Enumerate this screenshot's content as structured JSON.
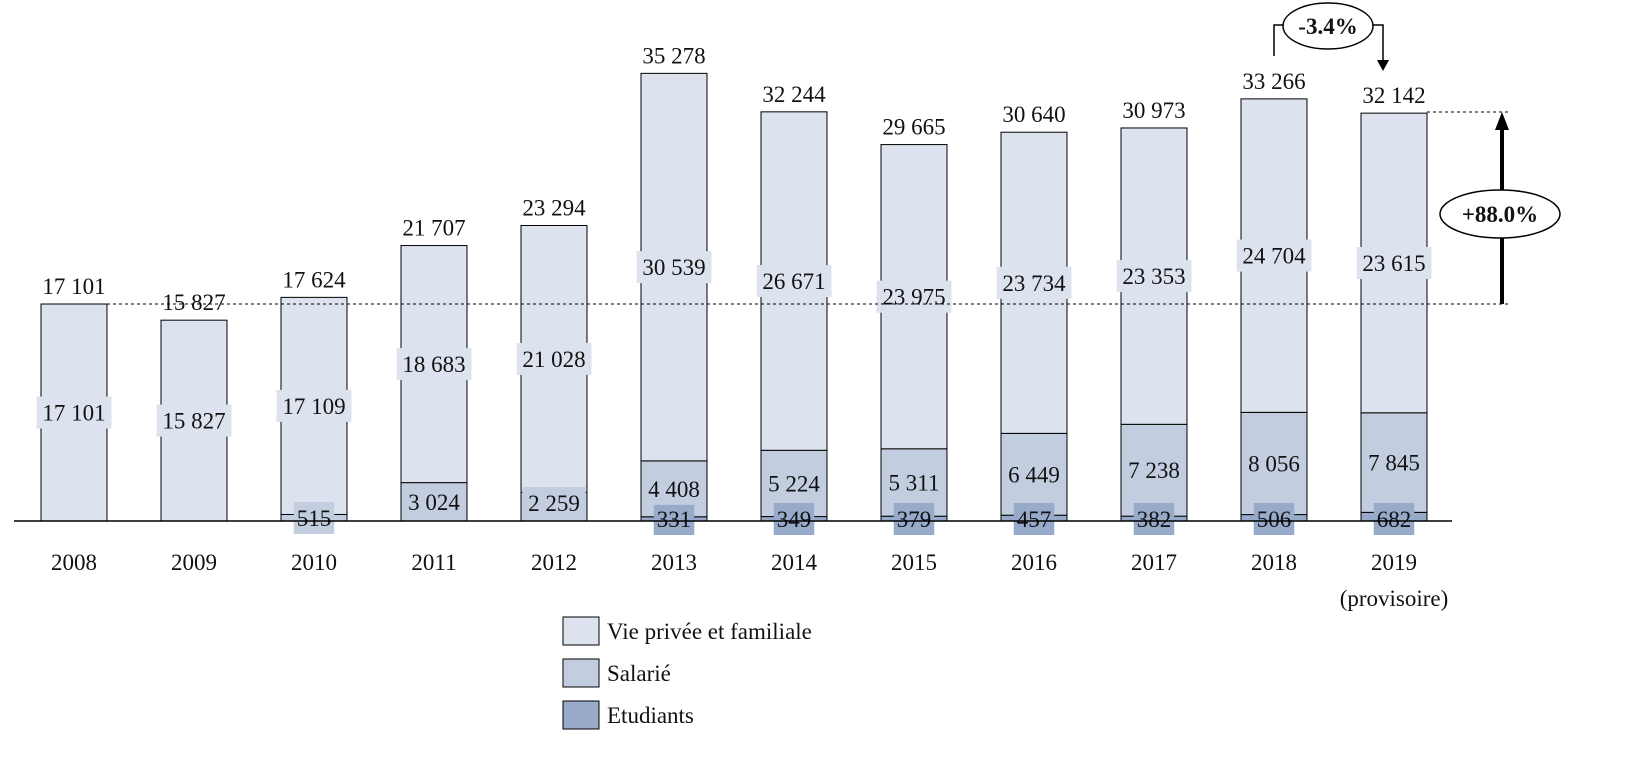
{
  "chart_data": {
    "type": "bar",
    "stacked": true,
    "categories": [
      "2008",
      "2009",
      "2010",
      "2011",
      "2012",
      "2013",
      "2014",
      "2015",
      "2016",
      "2017",
      "2018",
      "2019"
    ],
    "category_sublabels": {
      "2019": "(provisoire)"
    },
    "totals": [
      17101,
      15827,
      17624,
      21707,
      23294,
      35278,
      32244,
      29665,
      30640,
      30973,
      33266,
      32142
    ],
    "total_labels": [
      "17 101",
      "15 827",
      "17 624",
      "21 707",
      "23 294",
      "35 278",
      "32 244",
      "29 665",
      "30 640",
      "30 973",
      "33 266",
      "32 142"
    ],
    "series": [
      {
        "name": "Etudiants",
        "color": "#97AACA",
        "values": [
          0,
          0,
          0,
          0,
          0,
          331,
          349,
          379,
          457,
          382,
          506,
          682
        ],
        "labels": [
          "",
          "",
          "",
          "",
          "",
          "331",
          "349",
          "379",
          "457",
          "382",
          "506",
          "682"
        ]
      },
      {
        "name": "Salarié",
        "color": "#C3CDE0",
        "values": [
          0,
          0,
          515,
          3024,
          2259,
          4408,
          5224,
          5311,
          6449,
          7238,
          8056,
          7845
        ],
        "labels": [
          "",
          "",
          "515",
          "3 024",
          "2 259",
          "4 408",
          "5 224",
          "5 311",
          "6 449",
          "7 238",
          "8 056",
          "7 845"
        ]
      },
      {
        "name": "Vie privée et familiale",
        "color": "#DCE3EE",
        "values": [
          17101,
          15827,
          17109,
          18683,
          21028,
          30539,
          26671,
          23975,
          23734,
          23353,
          24704,
          23615
        ],
        "labels": [
          "17 101",
          "15 827",
          "17 109",
          "18 683",
          "21 028",
          "30 539",
          "26 671",
          "23 975",
          "23 734",
          "23 353",
          "24 704",
          "23 615"
        ]
      }
    ],
    "legend_order": [
      "Vie privée et familiale",
      "Salarié",
      "Etudiants"
    ],
    "legend_position": "bottom",
    "annotations": {
      "growth_total": "+88.0%",
      "change_last_year": "-3.4%"
    },
    "ylim": [
      0,
      36000
    ],
    "grid": false
  }
}
